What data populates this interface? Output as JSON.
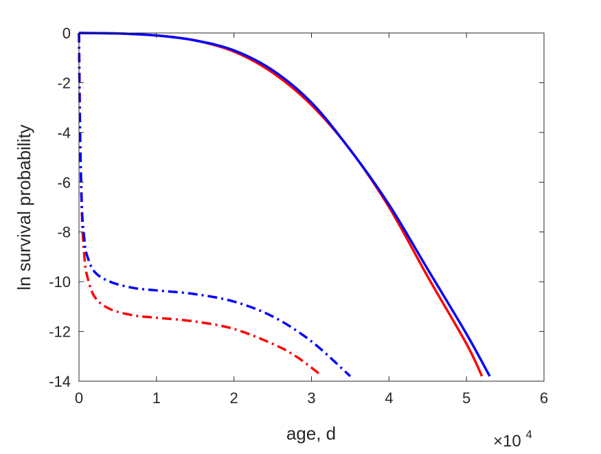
{
  "chart_data": {
    "type": "line",
    "title": "",
    "xlabel": "age, d",
    "ylabel": "ln survival probability",
    "x_exponent_label": "×10",
    "x_exponent_power": "4",
    "x_scale_factor": 10000,
    "xlim": [
      0,
      60000
    ],
    "ylim": [
      -14,
      0
    ],
    "x_ticks": [
      0,
      10000,
      20000,
      30000,
      40000,
      50000,
      60000
    ],
    "x_tick_labels": [
      "0",
      "1",
      "2",
      "3",
      "4",
      "5",
      "6"
    ],
    "y_ticks": [
      0,
      -2,
      -4,
      -6,
      -8,
      -10,
      -12,
      -14
    ],
    "y_tick_labels": [
      "0",
      "-2",
      "-4",
      "-6",
      "-8",
      "-10",
      "-12",
      "-14"
    ],
    "grid": false,
    "legend": "none",
    "colors": {
      "red": "#ff0000",
      "blue": "#0000ff",
      "axes": "#262626"
    },
    "series": [
      {
        "color": "#ff0000",
        "style": "solid",
        "x": [
          0,
          5000,
          10000,
          15000,
          20000,
          25000,
          30000,
          35000,
          40000,
          45000,
          50000,
          52000
        ],
        "y": [
          0,
          -0.02,
          -0.1,
          -0.3,
          -0.75,
          -1.6,
          -2.9,
          -4.7,
          -7.0,
          -9.8,
          -12.5,
          -13.8
        ]
      },
      {
        "color": "#0000ff",
        "style": "solid",
        "x": [
          0,
          5000,
          10000,
          15000,
          20000,
          25000,
          30000,
          35000,
          40000,
          45000,
          50000,
          53000
        ],
        "y": [
          0,
          -0.02,
          -0.1,
          -0.3,
          -0.7,
          -1.5,
          -2.8,
          -4.7,
          -6.9,
          -9.5,
          -12.1,
          -13.8
        ]
      },
      {
        "color": "#ff0000",
        "style": "dashdot",
        "x": [
          0,
          100,
          200,
          400,
          700,
          1000,
          2000,
          4000,
          7000,
          10000,
          15000,
          20000,
          25000,
          28000,
          31000
        ],
        "y": [
          0,
          -3.0,
          -5.0,
          -7.5,
          -9.0,
          -9.7,
          -10.6,
          -11.1,
          -11.35,
          -11.45,
          -11.6,
          -11.9,
          -12.5,
          -13.0,
          -13.7
        ]
      },
      {
        "color": "#0000ff",
        "style": "dashdot",
        "x": [
          0,
          100,
          200,
          400,
          700,
          1000,
          2000,
          4000,
          7000,
          10000,
          15000,
          20000,
          25000,
          30000,
          35000
        ],
        "y": [
          0,
          -3.0,
          -5.0,
          -7.2,
          -8.3,
          -8.9,
          -9.6,
          -10.0,
          -10.25,
          -10.35,
          -10.5,
          -10.8,
          -11.4,
          -12.4,
          -13.8
        ]
      }
    ]
  }
}
